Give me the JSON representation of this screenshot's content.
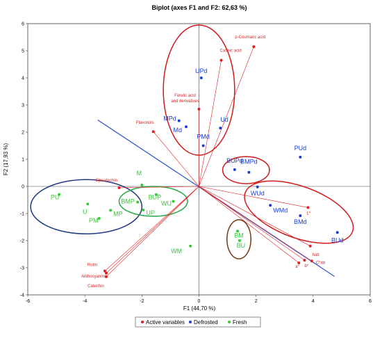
{
  "colors": {
    "active": "#e02020",
    "defrosted": "#1a3fd0",
    "fresh": "#33cc33",
    "line_blue": "#3a5fc8",
    "ellipse_red": "#d11a1a",
    "ellipse_navy": "#1f3a80",
    "ellipse_green": "#22aa44",
    "ellipse_brown": "#7a3a10"
  },
  "chart_data": {
    "type": "scatter",
    "title": "Biplot (axes F1 and F2: 62,63 %)",
    "xlabel": "F1 (44,70 %)",
    "ylabel": "F2 (17,93 %)",
    "xlim": [
      -6,
      6
    ],
    "ylim": [
      -4,
      6
    ],
    "xticks": [
      "-6",
      "-4",
      "-2",
      "0",
      "2",
      "4",
      "6"
    ],
    "yticks": [
      "-4",
      "-3",
      "-2",
      "-1",
      "0",
      "1",
      "2",
      "3",
      "4",
      "5",
      "6"
    ],
    "grid": false,
    "legend_position": "bottom",
    "legend": [
      "Active variables",
      "Defrosted",
      "Fresh"
    ],
    "series": [
      {
        "name": "Active variables",
        "points": [
          {
            "label": "p-Coumaric acid",
            "x": 1.92,
            "y": 5.15
          },
          {
            "label": "Caffeic acid",
            "x": 0.78,
            "y": 4.65
          },
          {
            "label": "Ferulic acid",
            "x": 0.0,
            "y": 2.85
          },
          {
            "label": "and derivatives",
            "x": null,
            "y": null
          },
          {
            "label": "Flavonols",
            "x": -1.6,
            "y": 2.02
          },
          {
            "label": "Epicatechin",
            "x": -2.8,
            "y": -0.05
          },
          {
            "label": "Rutin",
            "x": -3.3,
            "y": -3.12
          },
          {
            "label": "Anthocyanins",
            "x": -3.25,
            "y": -3.2
          },
          {
            "label": "Catechin",
            "x": -3.25,
            "y": -3.33
          },
          {
            "label": "L*",
            "x": 3.82,
            "y": -0.78
          },
          {
            "label": "hab",
            "x": 3.9,
            "y": -2.2
          },
          {
            "label": "C*ab",
            "x": 3.95,
            "y": -2.75
          },
          {
            "label": "b*",
            "x": 3.7,
            "y": -2.72
          },
          {
            "label": "a*",
            "x": 3.5,
            "y": -2.82
          }
        ]
      },
      {
        "name": "Defrosted",
        "points": [
          {
            "label": "UPd",
            "x": 0.08,
            "y": 4.0
          },
          {
            "label": "MPd",
            "x": -0.7,
            "y": 2.42
          },
          {
            "label": "Md",
            "x": -0.45,
            "y": 2.2
          },
          {
            "label": "Ud",
            "x": 0.75,
            "y": 2.15
          },
          {
            "label": "PMd",
            "x": 0.15,
            "y": 1.5
          },
          {
            "label": "BUPd",
            "x": 1.25,
            "y": 0.62
          },
          {
            "label": "BMPd",
            "x": 1.75,
            "y": 0.52
          },
          {
            "label": "PUd",
            "x": 3.55,
            "y": 1.08
          },
          {
            "label": "WUd",
            "x": 2.05,
            "y": -0.02
          },
          {
            "label": "WMd",
            "x": 2.5,
            "y": -0.7
          },
          {
            "label": "BMd",
            "x": 3.55,
            "y": -1.08
          },
          {
            "label": "BUd",
            "x": 4.85,
            "y": -1.7
          }
        ]
      },
      {
        "name": "Fresh",
        "points": [
          {
            "label": "M",
            "x": -2.0,
            "y": 0.05
          },
          {
            "label": "PU",
            "x": -4.9,
            "y": -0.3
          },
          {
            "label": "U",
            "x": -3.9,
            "y": -0.65
          },
          {
            "label": "MP",
            "x": -3.1,
            "y": -0.88
          },
          {
            "label": "PM",
            "x": -3.5,
            "y": -1.18
          },
          {
            "label": "BMP",
            "x": -2.15,
            "y": -0.58
          },
          {
            "label": "BUP",
            "x": -1.5,
            "y": -0.3
          },
          {
            "label": "UP",
            "x": -1.95,
            "y": -0.87
          },
          {
            "label": "WU",
            "x": -0.9,
            "y": -0.55
          },
          {
            "label": "BM",
            "x": 1.35,
            "y": -1.65
          },
          {
            "label": "BU",
            "x": 1.42,
            "y": -2.0
          },
          {
            "label": "WM",
            "x": -0.3,
            "y": -2.2
          }
        ]
      }
    ]
  }
}
